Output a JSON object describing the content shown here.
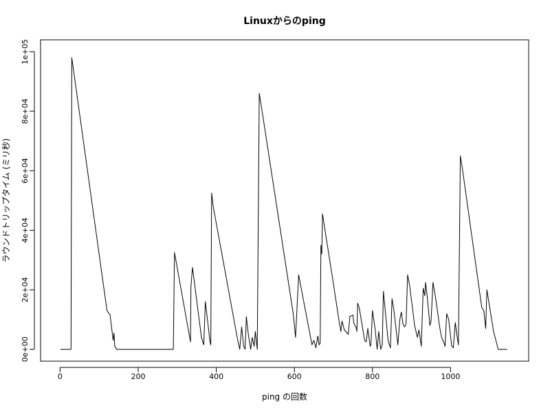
{
  "chart_data": {
    "type": "line",
    "title": "Linuxからのping",
    "xlabel": "ping の回数",
    "ylabel": "ラウンドトリップタイム (ミリ秒)",
    "xlim": [
      -50,
      1200
    ],
    "ylim": [
      -4000,
      104000
    ],
    "x_ticks": [
      0,
      200,
      400,
      600,
      800,
      1000
    ],
    "x_tick_labels": [
      "0",
      "200",
      "400",
      "600",
      "800",
      "1000"
    ],
    "y_ticks": [
      0,
      20000,
      40000,
      60000,
      80000,
      100000
    ],
    "y_tick_labels": [
      "0e+00",
      "2e+04",
      "4e+04",
      "6e+04",
      "8e+04",
      "1e+05"
    ],
    "grid": false,
    "series": [
      {
        "color": "#000000",
        "points": [
          [
            1,
            0
          ],
          [
            28,
            0
          ],
          [
            30,
            98000
          ],
          [
            120,
            13000
          ],
          [
            128,
            11500
          ],
          [
            136,
            3000
          ],
          [
            138,
            5500
          ],
          [
            140,
            1000
          ],
          [
            145,
            0
          ],
          [
            200,
            0
          ],
          [
            290,
            0
          ],
          [
            293,
            32500
          ],
          [
            334,
            2500
          ],
          [
            335,
            21000
          ],
          [
            339,
            27500
          ],
          [
            362,
            4000
          ],
          [
            368,
            1500
          ],
          [
            372,
            16000
          ],
          [
            384,
            2500
          ],
          [
            386,
            1500
          ],
          [
            388,
            52500
          ],
          [
            392,
            48000
          ],
          [
            455,
            3000
          ],
          [
            460,
            0
          ],
          [
            465,
            7500
          ],
          [
            470,
            1000
          ],
          [
            474,
            0
          ],
          [
            477,
            11000
          ],
          [
            482,
            5000
          ],
          [
            488,
            0
          ],
          [
            492,
            4000
          ],
          [
            497,
            1000
          ],
          [
            500,
            6000
          ],
          [
            505,
            0
          ],
          [
            510,
            86000
          ],
          [
            515,
            82000
          ],
          [
            597,
            12000
          ],
          [
            603,
            4000
          ],
          [
            611,
            25000
          ],
          [
            640,
            5000
          ],
          [
            645,
            1500
          ],
          [
            650,
            3000
          ],
          [
            655,
            500
          ],
          [
            660,
            4500
          ],
          [
            663,
            1500
          ],
          [
            666,
            2000
          ],
          [
            668,
            35000
          ],
          [
            670,
            32000
          ],
          [
            672,
            45500
          ],
          [
            676,
            42000
          ],
          [
            700,
            22000
          ],
          [
            715,
            9000
          ],
          [
            719,
            6000
          ],
          [
            722,
            9500
          ],
          [
            728,
            6500
          ],
          [
            738,
            5000
          ],
          [
            742,
            11000
          ],
          [
            750,
            11500
          ],
          [
            752,
            9000
          ],
          [
            755,
            8000
          ],
          [
            758,
            7500
          ],
          [
            760,
            6000
          ],
          [
            762,
            15500
          ],
          [
            766,
            14000
          ],
          [
            780,
            3000
          ],
          [
            784,
            2500
          ],
          [
            788,
            7000
          ],
          [
            794,
            1000
          ],
          [
            796,
            1500
          ],
          [
            800,
            13000
          ],
          [
            807,
            6500
          ],
          [
            812,
            0
          ],
          [
            816,
            6000
          ],
          [
            821,
            0
          ],
          [
            825,
            1500
          ],
          [
            828,
            19500
          ],
          [
            840,
            3000
          ],
          [
            846,
            500
          ],
          [
            850,
            17000
          ],
          [
            855,
            13000
          ],
          [
            865,
            1500
          ],
          [
            870,
            10000
          ],
          [
            874,
            12500
          ],
          [
            878,
            8500
          ],
          [
            882,
            7500
          ],
          [
            886,
            8500
          ],
          [
            890,
            25000
          ],
          [
            895,
            21500
          ],
          [
            908,
            8000
          ],
          [
            915,
            4000
          ],
          [
            919,
            6500
          ],
          [
            925,
            1000
          ],
          [
            930,
            20500
          ],
          [
            934,
            18000
          ],
          [
            936,
            22500
          ],
          [
            940,
            18000
          ],
          [
            947,
            8000
          ],
          [
            950,
            9500
          ],
          [
            955,
            22500
          ],
          [
            962,
            17000
          ],
          [
            972,
            7500
          ],
          [
            977,
            4000
          ],
          [
            982,
            2500
          ],
          [
            986,
            1000
          ],
          [
            990,
            12000
          ],
          [
            995,
            10000
          ],
          [
            1003,
            1000
          ],
          [
            1007,
            500
          ],
          [
            1012,
            9000
          ],
          [
            1016,
            5000
          ],
          [
            1020,
            1500
          ],
          [
            1025,
            65000
          ],
          [
            1030,
            61000
          ],
          [
            1080,
            14000
          ],
          [
            1085,
            13000
          ],
          [
            1090,
            7000
          ],
          [
            1093,
            20000
          ],
          [
            1110,
            6000
          ],
          [
            1122,
            0
          ],
          [
            1130,
            0
          ],
          [
            1145,
            0
          ]
        ]
      }
    ]
  }
}
